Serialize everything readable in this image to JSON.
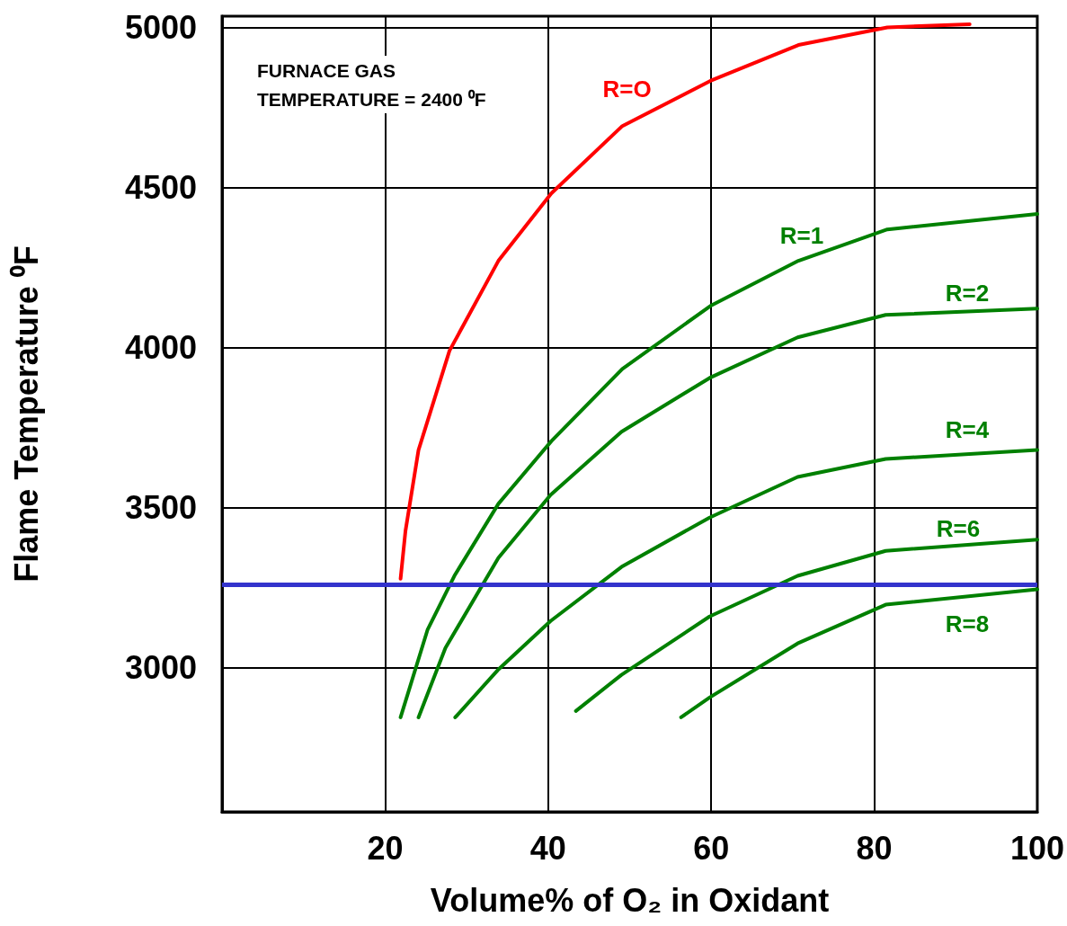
{
  "chart_data": {
    "type": "line",
    "xlabel": "Volume% of O₂ in Oxidant",
    "ylabel": "Flame Temperature ⁰F",
    "annotations": [
      "FURNACE GAS\nTEMPERATURE = 2400 ⁰F"
    ],
    "xlim": [
      0,
      100
    ],
    "xticks": [
      20,
      40,
      60,
      80,
      100
    ],
    "ylim": [
      2550,
      5035
    ],
    "yticks": [
      3000,
      3500,
      4000,
      4500,
      5000
    ],
    "grid": true,
    "marker": "none",
    "line_style": "solid",
    "series": [
      {
        "name": "R=O",
        "color": "#ff0000",
        "x": [
          21.9,
          22.5,
          24.1,
          27.9,
          33.9,
          40.4,
          49.1,
          59.9,
          70.7,
          81.6,
          91.7
        ],
        "values": [
          3278,
          3427,
          3680,
          3990,
          4271,
          4482,
          4692,
          4833,
          4945,
          5000,
          5010
        ]
      },
      {
        "name": "R=1",
        "color": "#008000",
        "x": [
          21.9,
          25.2,
          28.5,
          33.9,
          40.4,
          49.1,
          59.9,
          70.7,
          81.6,
          100
        ],
        "values": [
          2845,
          3118,
          3287,
          3512,
          3708,
          3933,
          4130,
          4271,
          4369,
          4417
        ]
      },
      {
        "name": "R=2",
        "color": "#008000",
        "x": [
          24.1,
          27.4,
          33.9,
          40.3,
          49,
          59.8,
          70.6,
          81.4,
          100
        ],
        "values": [
          2845,
          3062,
          3343,
          3540,
          3737,
          3905,
          4032,
          4102,
          4122
        ]
      },
      {
        "name": "R=4",
        "color": "#008000",
        "x": [
          28.6,
          33.8,
          40.3,
          49,
          59.8,
          70.6,
          81.4,
          100
        ],
        "values": [
          2845,
          2992,
          3146,
          3315,
          3469,
          3596,
          3652,
          3680
        ]
      },
      {
        "name": "R=6",
        "color": "#008000",
        "x": [
          43.4,
          49,
          59.8,
          70.6,
          81.4,
          100
        ],
        "values": [
          2865,
          2978,
          3160,
          3287,
          3365,
          3400
        ]
      },
      {
        "name": "R=8",
        "color": "#008000",
        "x": [
          56.3,
          59.8,
          70.6,
          81.4,
          100
        ],
        "values": [
          2845,
          2907,
          3076,
          3197,
          3245
        ]
      }
    ],
    "ref_lines": [
      {
        "axis": "y",
        "value": 3260,
        "color": "#3333cc",
        "line_style": "solid"
      }
    ]
  }
}
